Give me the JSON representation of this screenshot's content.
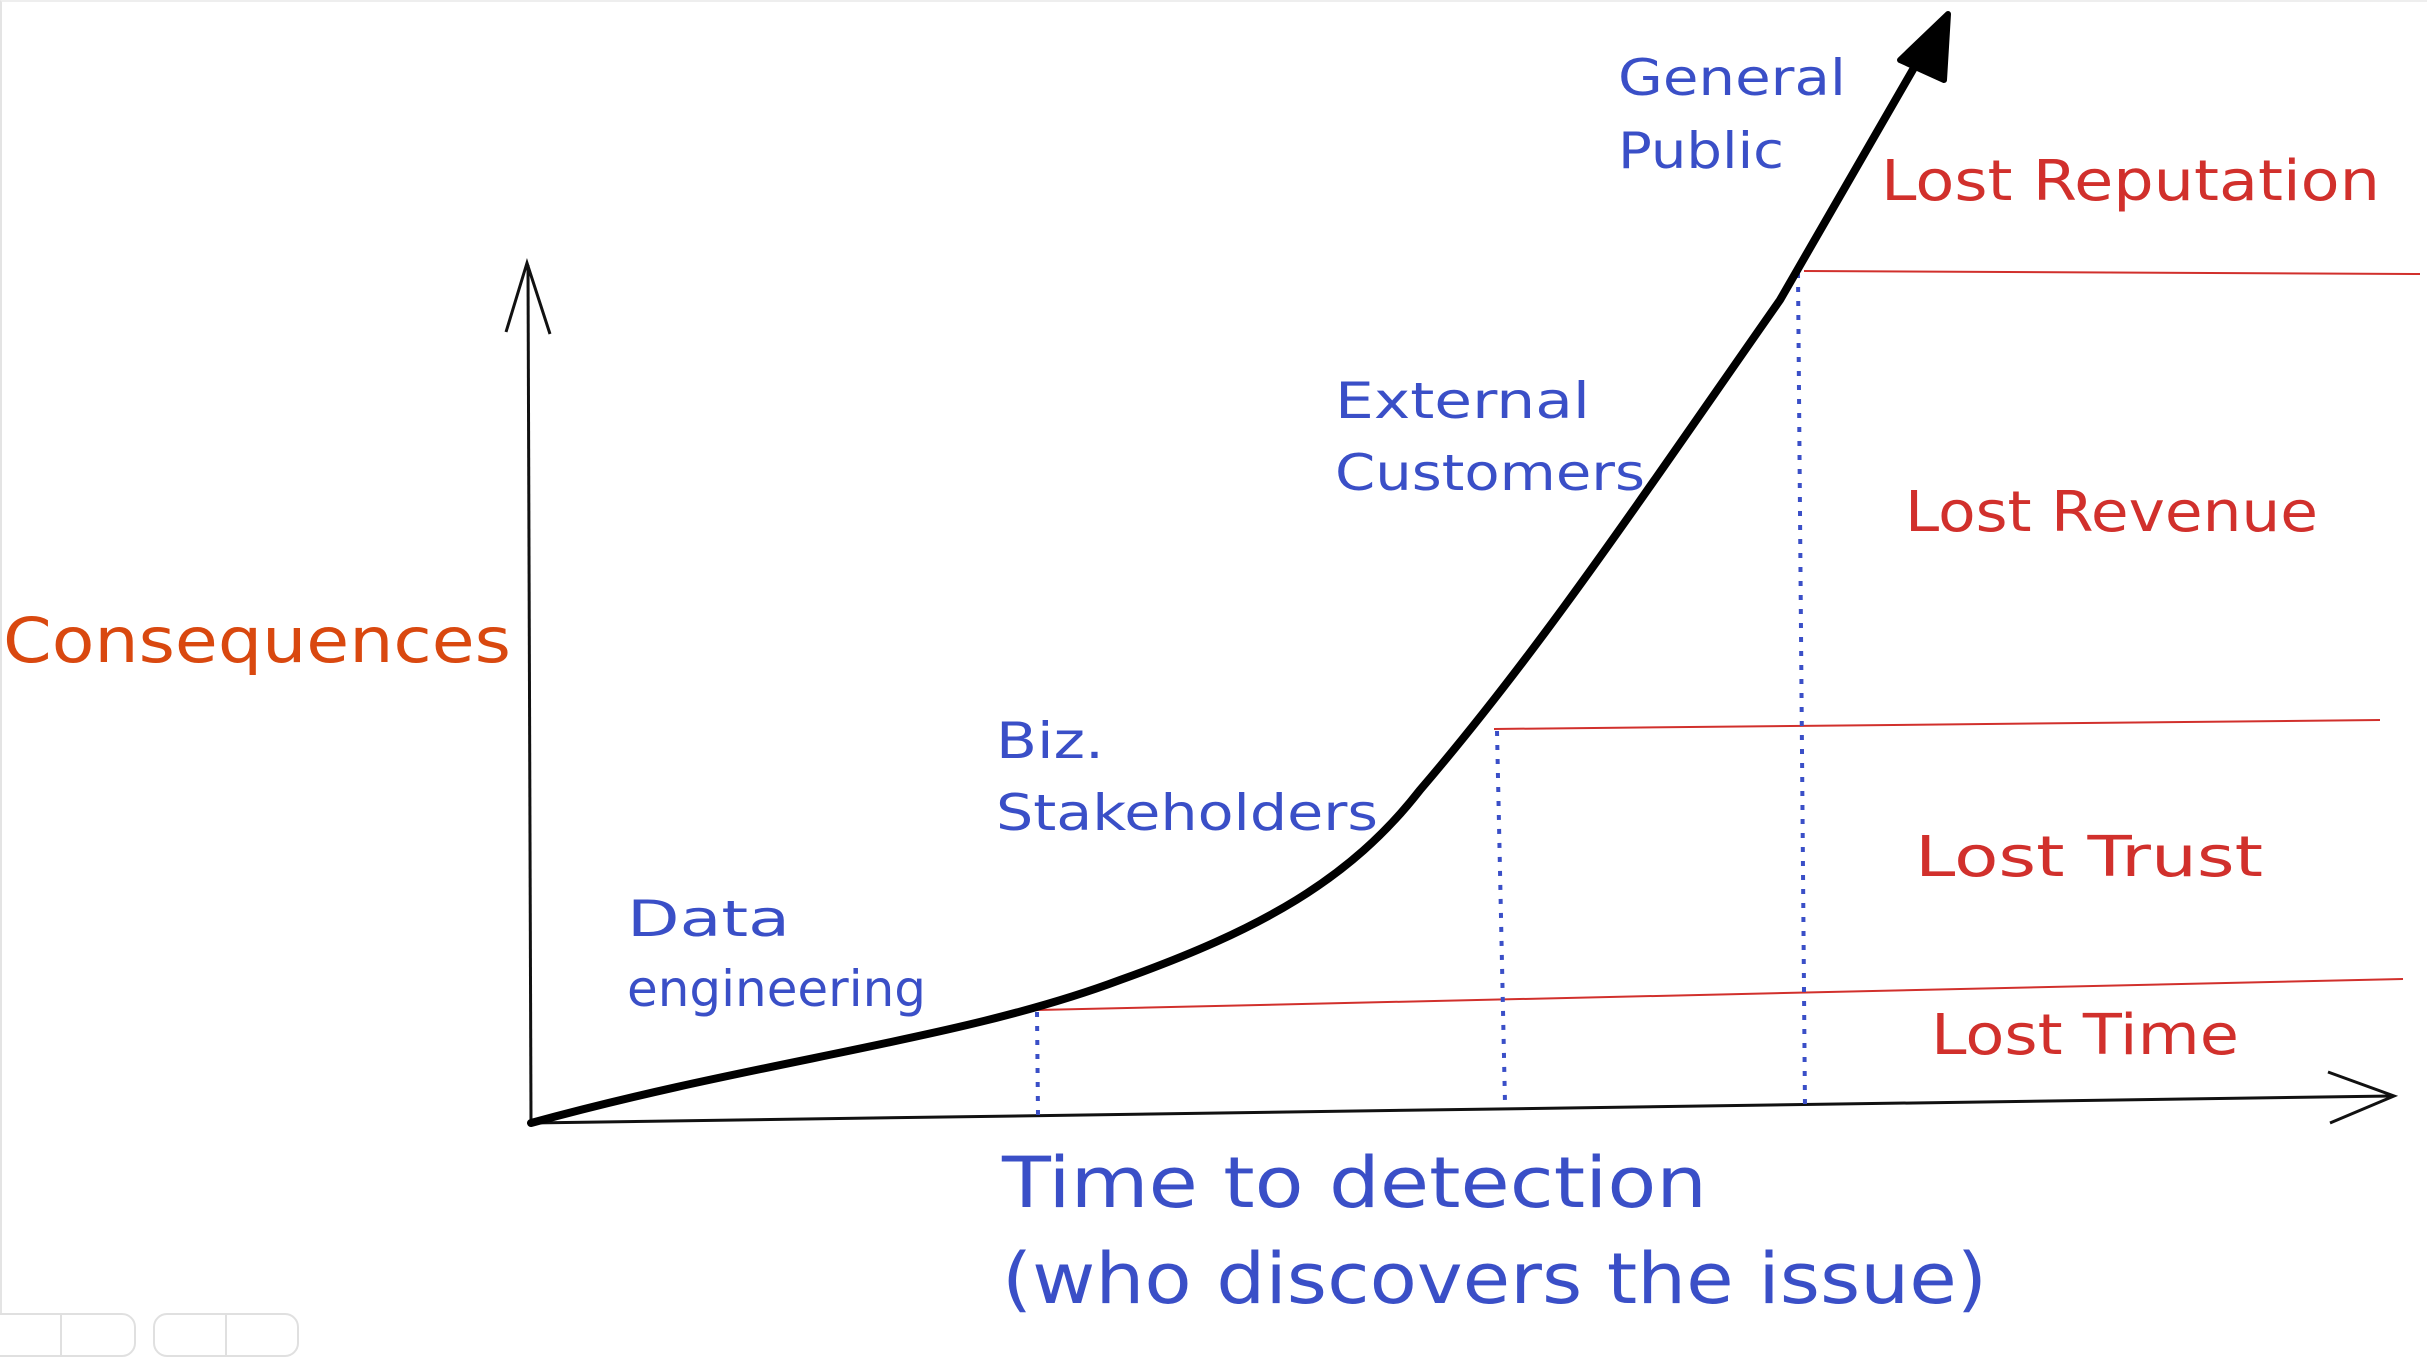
{
  "diagram": {
    "y_axis_label": "Consequences",
    "x_axis_label_line1": "Time to detection",
    "x_axis_label_line2": "(who discovers the issue)",
    "stages": [
      {
        "line1": "Data",
        "line2": "engineering"
      },
      {
        "line1": "Biz.",
        "line2": "Stakeholders"
      },
      {
        "line1": "External",
        "line2": "Customers"
      },
      {
        "line1": "General",
        "line2": "Public"
      }
    ],
    "consequences": [
      {
        "label": "Lost Reputation"
      },
      {
        "label": "Lost Revenue"
      },
      {
        "label": "Lost Trust"
      },
      {
        "label": "Lost Time"
      }
    ],
    "colors": {
      "stage_text": "#3a4fc7",
      "consequence_text": "#d1302c",
      "y_label": "#d9480f",
      "curve": "#000000",
      "threshold_lines": "#d1302c",
      "dotted_markers": "#3a4fc7"
    }
  }
}
